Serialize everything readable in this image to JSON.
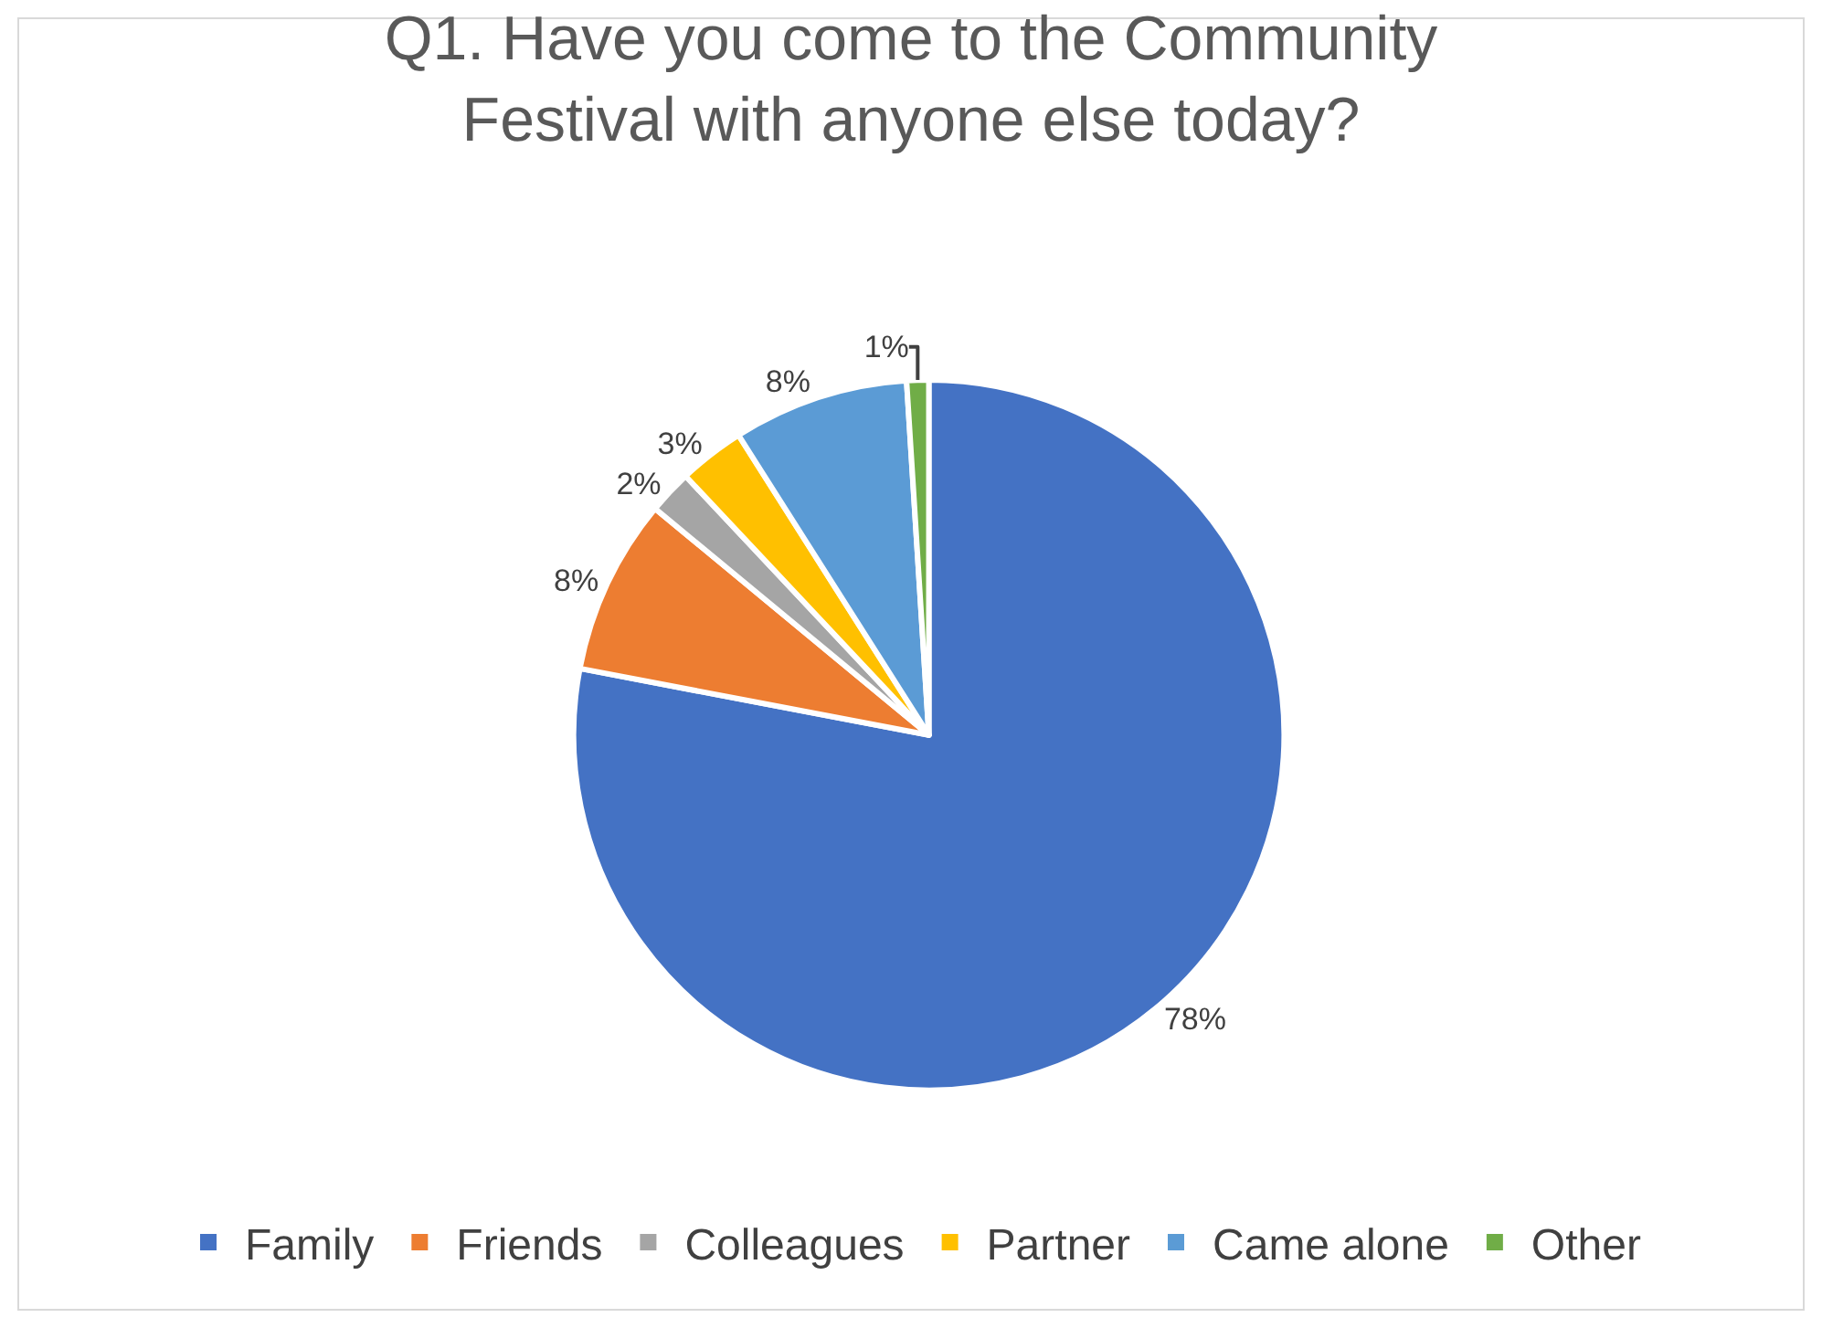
{
  "chart_data": {
    "type": "pie",
    "title": "Q1. Have you come to the Community\nFestival with anyone else today?",
    "categories": [
      "Family",
      "Friends",
      "Colleagues",
      "Partner",
      "Came alone",
      "Other"
    ],
    "values": [
      78,
      8,
      2,
      3,
      8,
      1
    ],
    "value_labels": [
      "78%",
      "8%",
      "2%",
      "3%",
      "8%",
      "1%"
    ],
    "colors": [
      "#4472c4",
      "#ed7d31",
      "#a5a5a5",
      "#ffc000",
      "#5b9bd5",
      "#70ad47"
    ],
    "legend": "bottom"
  }
}
